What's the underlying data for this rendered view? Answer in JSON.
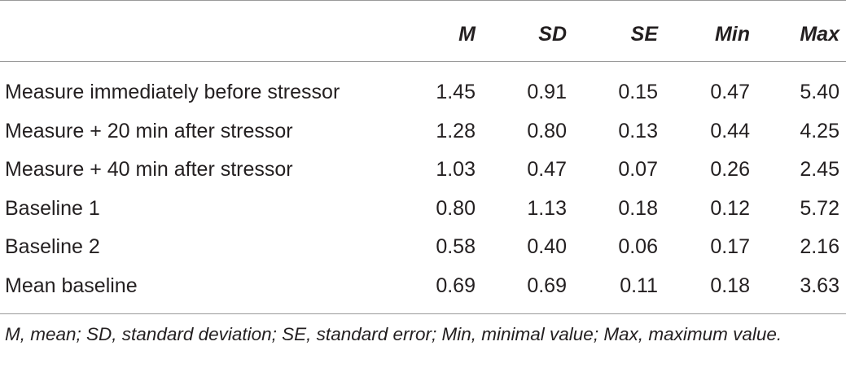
{
  "table": {
    "columns": [
      "",
      "M",
      "SD",
      "SE",
      "Min",
      "Max"
    ],
    "rows": [
      {
        "label": "Measure immediately before stressor",
        "m": "1.45",
        "sd": "0.91",
        "se": "0.15",
        "min": "0.47",
        "max": "5.40"
      },
      {
        "label": "Measure + 20 min after stressor",
        "m": "1.28",
        "sd": "0.80",
        "se": "0.13",
        "min": "0.44",
        "max": "4.25"
      },
      {
        "label": "Measure + 40 min after stressor",
        "m": "1.03",
        "sd": "0.47",
        "se": "0.07",
        "min": "0.26",
        "max": "2.45"
      },
      {
        "label": "Baseline 1",
        "m": "0.80",
        "sd": "1.13",
        "se": "0.18",
        "min": "0.12",
        "max": "5.72"
      },
      {
        "label": "Baseline 2",
        "m": "0.58",
        "sd": "0.40",
        "se": "0.06",
        "min": "0.17",
        "max": "2.16"
      },
      {
        "label": "Mean baseline",
        "m": "0.69",
        "sd": "0.69",
        "se": "0.11",
        "min": "0.18",
        "max": "3.63"
      }
    ]
  },
  "footnote": "M, mean; SD, standard deviation; SE, standard error; Min, minimal value; Max, maximum value."
}
